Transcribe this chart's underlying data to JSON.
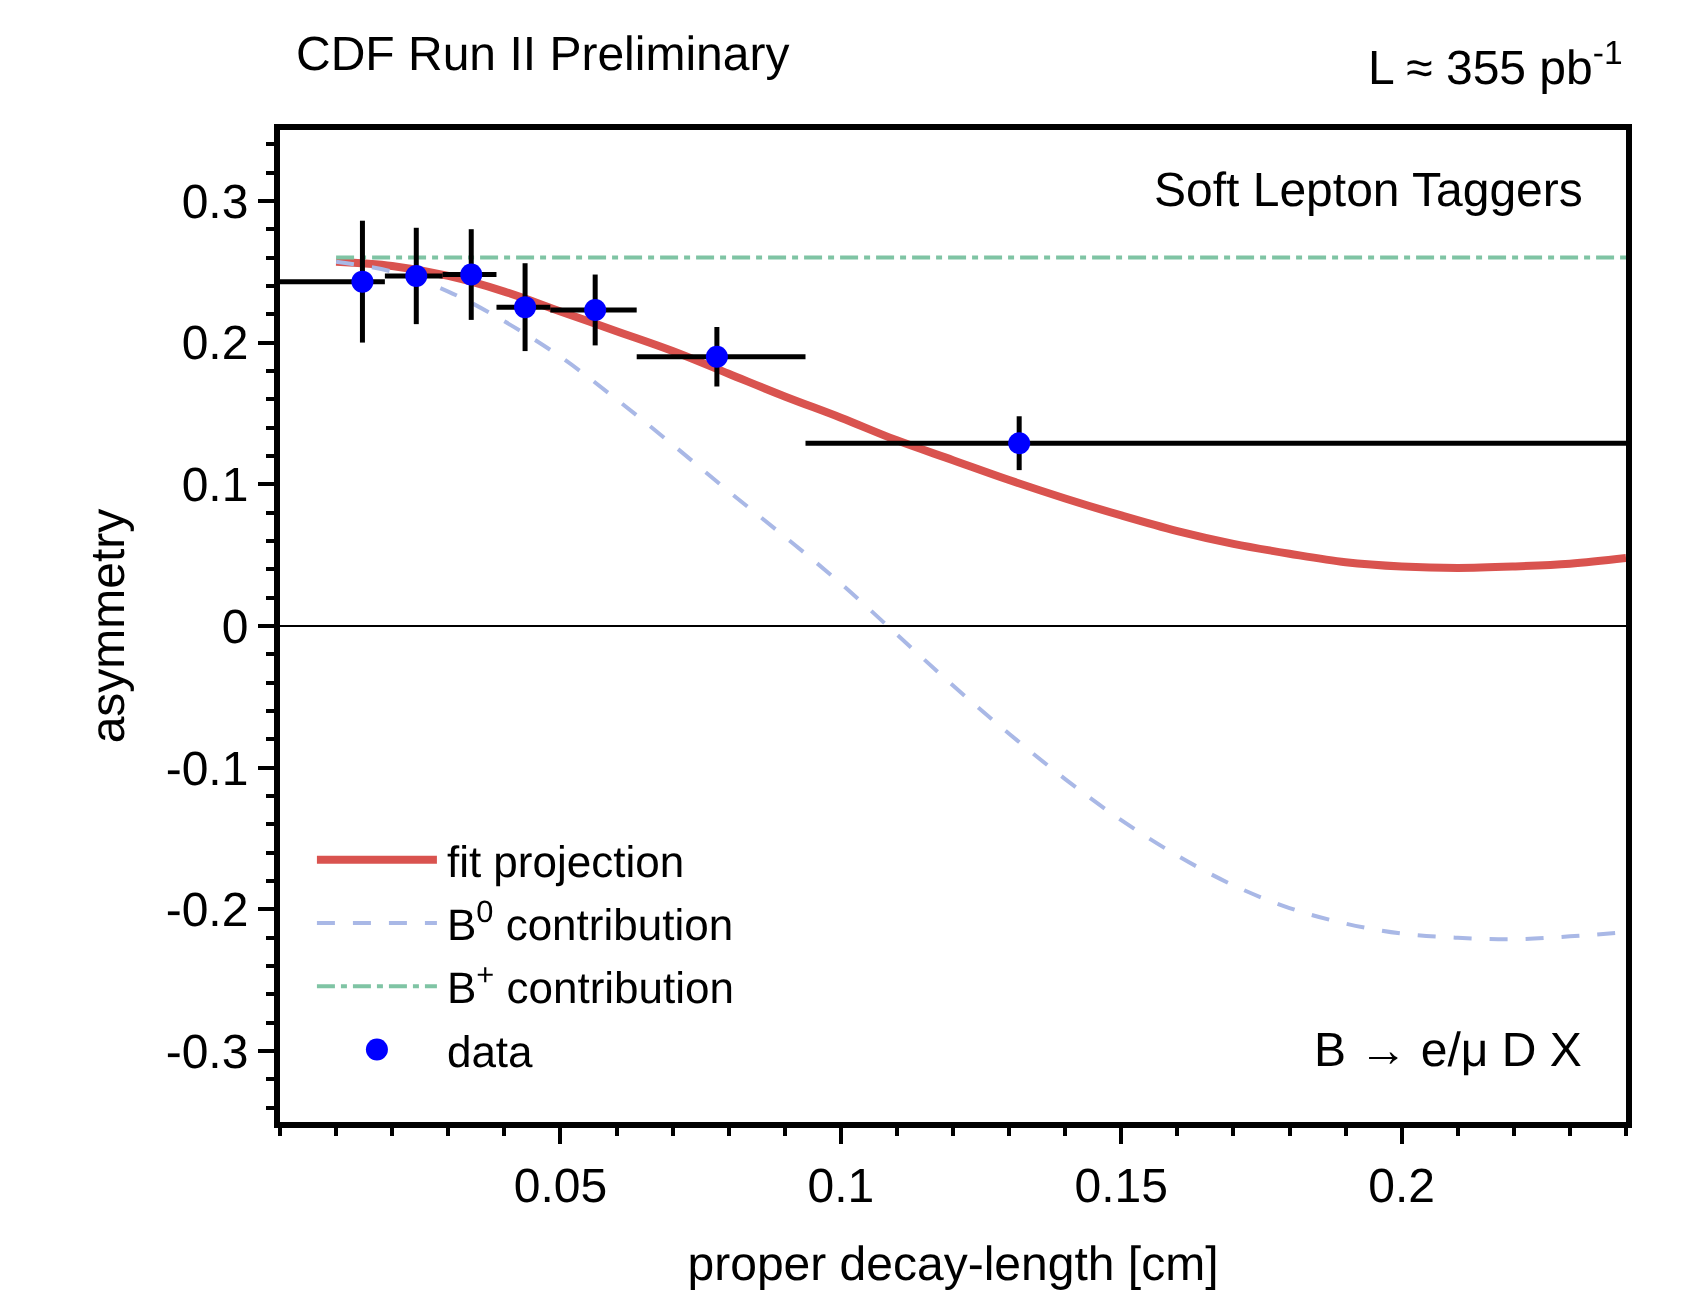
{
  "chart_data": {
    "type": "scatter",
    "title": "CDF Run II Preliminary",
    "xlabel": "proper decay-length [cm]",
    "ylabel": "asymmetry",
    "annotations": [
      "L ≈ 355 pb$^{-1}$",
      "Soft Lepton Taggers",
      "B → e/μ D X"
    ],
    "series": [
      {
        "name": "data",
        "color": "#0000ff",
        "marker": "circle",
        "x": [
          0.0147,
          0.0243,
          0.0341,
          0.0437,
          0.0562,
          0.0779,
          0.1318
        ],
        "values": [
          0.243,
          0.247,
          0.248,
          0.225,
          0.223,
          0.19,
          0.129
        ],
        "errors": [
          0.043,
          0.034,
          0.032,
          0.031,
          0.025,
          0.021,
          0.019
        ],
        "xerrors": [
          [
            0.0,
            0.0187
          ],
          [
            0.0187,
            0.029
          ],
          [
            0.029,
            0.0386
          ],
          [
            0.0386,
            0.0482
          ],
          [
            0.0482,
            0.0636
          ],
          [
            0.0636,
            0.0937
          ],
          [
            0.0937,
            0.24
          ]
        ]
      },
      {
        "name": "fit projection",
        "type": "line",
        "color": "#d9534f",
        "line_style": "solid",
        "x": [
          0.01,
          0.02,
          0.03,
          0.04,
          0.05,
          0.06,
          0.07,
          0.08,
          0.09,
          0.1,
          0.11,
          0.12,
          0.13,
          0.14,
          0.15,
          0.16,
          0.17,
          0.18,
          0.19,
          0.2,
          0.21,
          0.22,
          0.23,
          0.24
        ],
        "values": [
          0.257,
          0.254,
          0.247,
          0.236,
          0.222,
          0.208,
          0.194,
          0.178,
          0.162,
          0.147,
          0.131,
          0.117,
          0.103,
          0.09,
          0.078,
          0.067,
          0.058,
          0.051,
          0.045,
          0.042,
          0.041,
          0.042,
          0.044,
          0.048
        ]
      },
      {
        "name": "B$^{0}$ contribution",
        "type": "line",
        "color": "#a9b8e6",
        "line_style": "dashed",
        "x": [
          0.01,
          0.02,
          0.03,
          0.04,
          0.05,
          0.06,
          0.07,
          0.08,
          0.09,
          0.1,
          0.11,
          0.12,
          0.13,
          0.14,
          0.15,
          0.16,
          0.17,
          0.18,
          0.19,
          0.2,
          0.21,
          0.22,
          0.23,
          0.24
        ],
        "values": [
          0.257,
          0.25,
          0.236,
          0.215,
          0.19,
          0.16,
          0.128,
          0.095,
          0.063,
          0.03,
          -0.006,
          -0.042,
          -0.076,
          -0.108,
          -0.137,
          -0.162,
          -0.183,
          -0.199,
          -0.21,
          -0.217,
          -0.22,
          -0.221,
          -0.219,
          -0.216
        ]
      },
      {
        "name": "B$^{+}$ contribution",
        "type": "line",
        "color": "#7fc4a4",
        "line_style": "dashdot",
        "x": [
          0.01,
          0.24
        ],
        "values": [
          0.26,
          0.26
        ]
      }
    ],
    "ref_lines": [
      {
        "axis": "y",
        "value": 0,
        "color": "#000000"
      }
    ],
    "xlim": [
      0,
      0.24
    ],
    "xticks": [
      0.05,
      0.1,
      0.15,
      0.2
    ],
    "ylim": [
      -0.35,
      0.35
    ],
    "yticks": [
      -0.3,
      -0.2,
      -0.1,
      0,
      0.1,
      0.2,
      0.3
    ],
    "grid": false,
    "legend": "bottom left"
  }
}
